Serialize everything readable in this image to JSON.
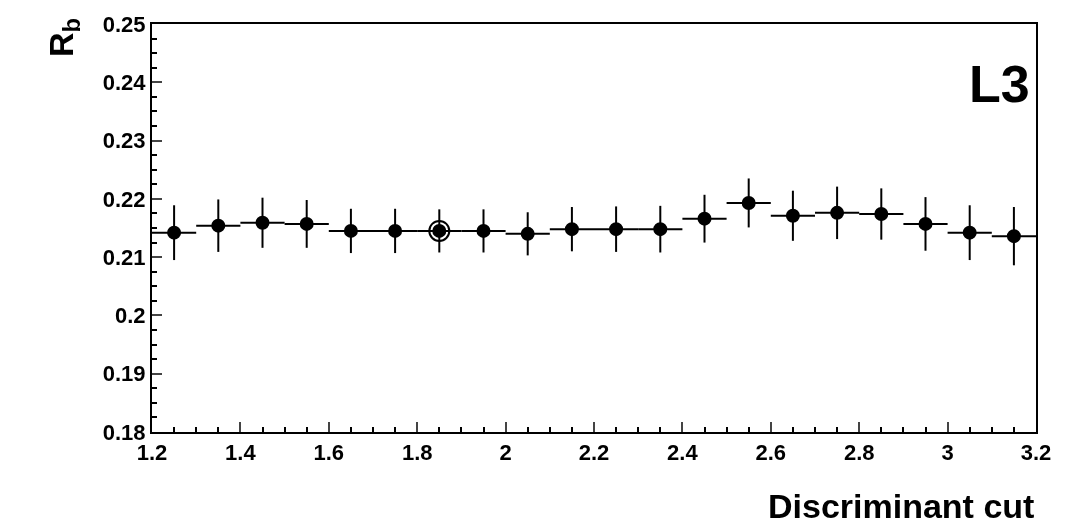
{
  "chart_data": {
    "type": "scatter",
    "xlabel": "Discriminant cut",
    "ylabel": "R$_{b}$",
    "annotations": [
      "L3"
    ],
    "xlim": [
      1.2,
      3.2
    ],
    "xticks": [
      1.2,
      1.4,
      1.6,
      1.8,
      2,
      2.2,
      2.4,
      2.6,
      2.8,
      3,
      3.2
    ],
    "ylim": [
      0.18,
      0.25
    ],
    "yticks": [
      0.18,
      0.19,
      0.2,
      0.21,
      0.22,
      0.23,
      0.24,
      0.25
    ],
    "marker": "circle",
    "series": [
      {
        "color": "#000000",
        "x": [
          1.85
        ],
        "values": [
          0.2145
        ],
        "marker": "circle-open"
      },
      {
        "color": "#000000",
        "x": [
          1.25,
          1.35,
          1.45,
          1.55,
          1.65,
          1.75,
          1.85,
          1.95,
          2.05,
          2.15,
          2.25,
          2.35,
          2.45,
          2.55,
          2.65,
          2.75,
          2.85,
          2.95,
          3.05,
          3.15
        ],
        "values": [
          0.2142,
          0.2154,
          0.2159,
          0.2157,
          0.2145,
          0.2145,
          0.2145,
          0.2145,
          0.214,
          0.2148,
          0.2148,
          0.2148,
          0.2166,
          0.2193,
          0.2171,
          0.2176,
          0.2174,
          0.2157,
          0.2142,
          0.2136
        ],
        "errors": [
          0.0047,
          0.0045,
          0.0043,
          0.0041,
          0.0038,
          0.0038,
          0.0037,
          0.0037,
          0.0037,
          0.0038,
          0.0039,
          0.004,
          0.0041,
          0.0042,
          0.0043,
          0.0045,
          0.0044,
          0.0046,
          0.0047,
          0.005
        ],
        "xerrors": [
          0.05,
          0.05,
          0.05,
          0.05,
          0.05,
          0.05,
          0.05,
          0.05,
          0.05,
          0.05,
          0.05,
          0.05,
          0.05,
          0.05,
          0.05,
          0.05,
          0.05,
          0.05,
          0.05,
          0.05
        ]
      }
    ]
  }
}
